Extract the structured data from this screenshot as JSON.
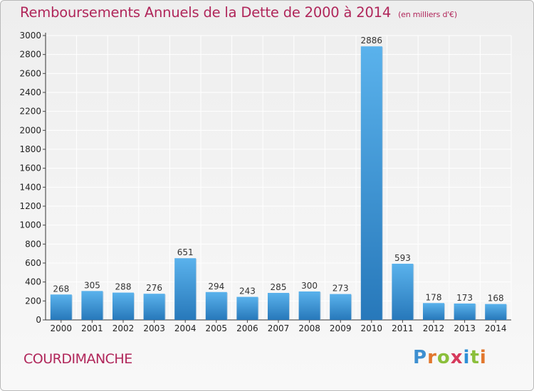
{
  "header": {
    "title": "Remboursements Annuels de la Dette de 2000 à 2014",
    "unit": "(en milliers d'€)"
  },
  "footer": {
    "commune": "COURDIMANCHE",
    "logo_text": "Proxiti"
  },
  "colors": {
    "title": "#b0265a",
    "bar_light": "#5ab2ec",
    "bar_dark": "#2778ba",
    "grid": "#ffffff"
  },
  "chart_data": {
    "type": "bar",
    "title": "Remboursements Annuels de la Dette de 2000 à 2014",
    "subtitle": "(en milliers d'€)",
    "categories": [
      "2000",
      "2001",
      "2002",
      "2003",
      "2004",
      "2005",
      "2006",
      "2007",
      "2008",
      "2009",
      "2010",
      "2011",
      "2012",
      "2013",
      "2014"
    ],
    "values": [
      268,
      305,
      288,
      276,
      651,
      294,
      243,
      285,
      300,
      273,
      2886,
      593,
      178,
      173,
      168
    ],
    "ylim": [
      0,
      3000
    ],
    "yticks": [
      0,
      200,
      400,
      600,
      800,
      1000,
      1200,
      1400,
      1600,
      1800,
      2000,
      2200,
      2400,
      2600,
      2800,
      3000
    ],
    "grid": true,
    "data_labels": true
  }
}
